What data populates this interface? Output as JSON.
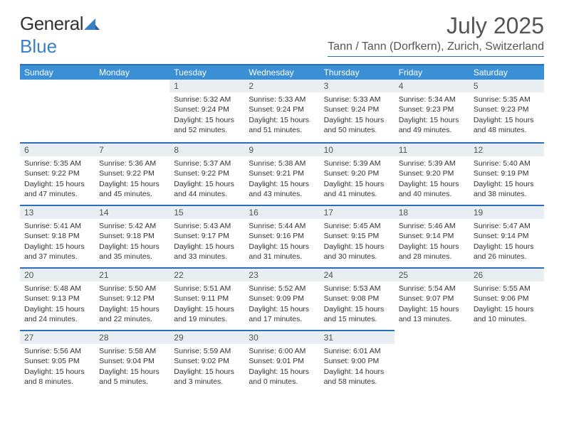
{
  "brand": {
    "part1": "General",
    "part2": "Blue"
  },
  "title": "July 2025",
  "location": "Tann / Tann (Dorfkern), Zurich, Switzerland",
  "colors": {
    "header_bar": "#3b8fd4",
    "rule": "#2a6db8",
    "daynum_bg": "#e9eef2",
    "text": "#333333"
  },
  "weekdays": [
    "Sunday",
    "Monday",
    "Tuesday",
    "Wednesday",
    "Thursday",
    "Friday",
    "Saturday"
  ],
  "weeks": [
    [
      null,
      null,
      {
        "n": "1",
        "sr": "5:32 AM",
        "ss": "9:24 PM",
        "dl": "15 hours and 52 minutes."
      },
      {
        "n": "2",
        "sr": "5:33 AM",
        "ss": "9:24 PM",
        "dl": "15 hours and 51 minutes."
      },
      {
        "n": "3",
        "sr": "5:33 AM",
        "ss": "9:24 PM",
        "dl": "15 hours and 50 minutes."
      },
      {
        "n": "4",
        "sr": "5:34 AM",
        "ss": "9:23 PM",
        "dl": "15 hours and 49 minutes."
      },
      {
        "n": "5",
        "sr": "5:35 AM",
        "ss": "9:23 PM",
        "dl": "15 hours and 48 minutes."
      }
    ],
    [
      {
        "n": "6",
        "sr": "5:35 AM",
        "ss": "9:22 PM",
        "dl": "15 hours and 47 minutes."
      },
      {
        "n": "7",
        "sr": "5:36 AM",
        "ss": "9:22 PM",
        "dl": "15 hours and 45 minutes."
      },
      {
        "n": "8",
        "sr": "5:37 AM",
        "ss": "9:22 PM",
        "dl": "15 hours and 44 minutes."
      },
      {
        "n": "9",
        "sr": "5:38 AM",
        "ss": "9:21 PM",
        "dl": "15 hours and 43 minutes."
      },
      {
        "n": "10",
        "sr": "5:39 AM",
        "ss": "9:20 PM",
        "dl": "15 hours and 41 minutes."
      },
      {
        "n": "11",
        "sr": "5:39 AM",
        "ss": "9:20 PM",
        "dl": "15 hours and 40 minutes."
      },
      {
        "n": "12",
        "sr": "5:40 AM",
        "ss": "9:19 PM",
        "dl": "15 hours and 38 minutes."
      }
    ],
    [
      {
        "n": "13",
        "sr": "5:41 AM",
        "ss": "9:18 PM",
        "dl": "15 hours and 37 minutes."
      },
      {
        "n": "14",
        "sr": "5:42 AM",
        "ss": "9:18 PM",
        "dl": "15 hours and 35 minutes."
      },
      {
        "n": "15",
        "sr": "5:43 AM",
        "ss": "9:17 PM",
        "dl": "15 hours and 33 minutes."
      },
      {
        "n": "16",
        "sr": "5:44 AM",
        "ss": "9:16 PM",
        "dl": "15 hours and 31 minutes."
      },
      {
        "n": "17",
        "sr": "5:45 AM",
        "ss": "9:15 PM",
        "dl": "15 hours and 30 minutes."
      },
      {
        "n": "18",
        "sr": "5:46 AM",
        "ss": "9:14 PM",
        "dl": "15 hours and 28 minutes."
      },
      {
        "n": "19",
        "sr": "5:47 AM",
        "ss": "9:14 PM",
        "dl": "15 hours and 26 minutes."
      }
    ],
    [
      {
        "n": "20",
        "sr": "5:48 AM",
        "ss": "9:13 PM",
        "dl": "15 hours and 24 minutes."
      },
      {
        "n": "21",
        "sr": "5:50 AM",
        "ss": "9:12 PM",
        "dl": "15 hours and 22 minutes."
      },
      {
        "n": "22",
        "sr": "5:51 AM",
        "ss": "9:11 PM",
        "dl": "15 hours and 19 minutes."
      },
      {
        "n": "23",
        "sr": "5:52 AM",
        "ss": "9:09 PM",
        "dl": "15 hours and 17 minutes."
      },
      {
        "n": "24",
        "sr": "5:53 AM",
        "ss": "9:08 PM",
        "dl": "15 hours and 15 minutes."
      },
      {
        "n": "25",
        "sr": "5:54 AM",
        "ss": "9:07 PM",
        "dl": "15 hours and 13 minutes."
      },
      {
        "n": "26",
        "sr": "5:55 AM",
        "ss": "9:06 PM",
        "dl": "15 hours and 10 minutes."
      }
    ],
    [
      {
        "n": "27",
        "sr": "5:56 AM",
        "ss": "9:05 PM",
        "dl": "15 hours and 8 minutes."
      },
      {
        "n": "28",
        "sr": "5:58 AM",
        "ss": "9:04 PM",
        "dl": "15 hours and 5 minutes."
      },
      {
        "n": "29",
        "sr": "5:59 AM",
        "ss": "9:02 PM",
        "dl": "15 hours and 3 minutes."
      },
      {
        "n": "30",
        "sr": "6:00 AM",
        "ss": "9:01 PM",
        "dl": "15 hours and 0 minutes."
      },
      {
        "n": "31",
        "sr": "6:01 AM",
        "ss": "9:00 PM",
        "dl": "14 hours and 58 minutes."
      },
      null,
      null
    ]
  ],
  "labels": {
    "sunrise": "Sunrise:",
    "sunset": "Sunset:",
    "daylight": "Daylight:"
  }
}
